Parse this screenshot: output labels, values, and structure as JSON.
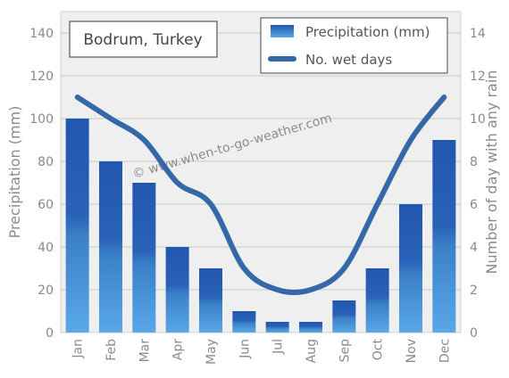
{
  "chart_data": {
    "type": "bar",
    "title": "Bodrum, Turkey",
    "watermark": "© www.when-to-go-weather.com",
    "categories": [
      "Jan",
      "Feb",
      "Mar",
      "Apr",
      "May",
      "Jun",
      "Jul",
      "Aug",
      "Sep",
      "Oct",
      "Nov",
      "Dec"
    ],
    "series": [
      {
        "name": "Precipitation (mm)",
        "type": "bar",
        "axis": "left",
        "values": [
          100,
          80,
          70,
          40,
          30,
          10,
          5,
          5,
          15,
          30,
          60,
          90
        ]
      },
      {
        "name": "No. wet days",
        "type": "line",
        "axis": "right",
        "values": [
          11,
          10,
          9,
          7,
          6,
          3,
          2,
          2,
          3,
          6,
          9,
          11
        ]
      }
    ],
    "ylabel": "Precipitation (mm)",
    "y2label": "Number of day with any rain",
    "ylim": [
      0,
      150
    ],
    "yticks": [
      0,
      20,
      40,
      60,
      80,
      100,
      120,
      140
    ],
    "y2lim": [
      0,
      15
    ],
    "y2ticks": [
      0,
      2,
      4,
      6,
      8,
      10,
      12,
      14
    ],
    "grid": true,
    "legend_position": "top-right",
    "colors": {
      "bar_top": "#2257b0",
      "bar_mid": "#3a80c8",
      "bar_bottom": "#5aa8e8",
      "line": "#3468a8",
      "grid": "#c8c8c8",
      "plot_bg": "#efefef",
      "text": "#8a8a8a"
    }
  }
}
